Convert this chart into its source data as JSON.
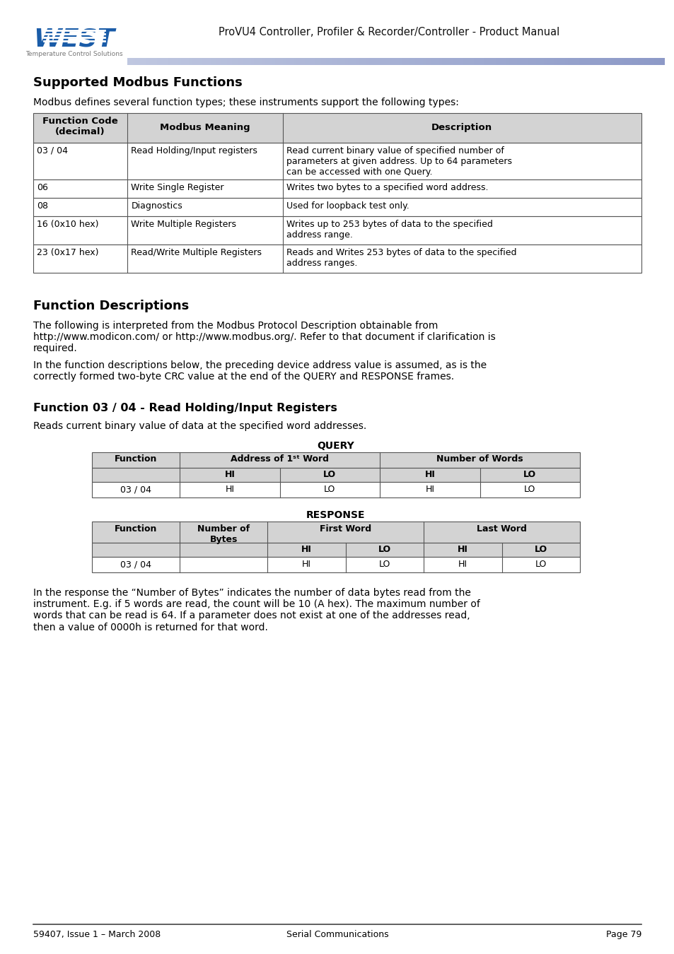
{
  "page_title": "ProVU4 Controller, Profiler & Recorder/Controller - Product Manual",
  "section1_title": "Supported Modbus Functions",
  "section1_intro": "Modbus defines several function types; these instruments support the following types:",
  "table1_headers": [
    "Function Code\n(decimal)",
    "Modbus Meaning",
    "Description"
  ],
  "table1_rows": [
    [
      "03 / 04",
      "Read Holding/Input registers",
      "Read current binary value of specified number of\nparameters at given address. Up to 64 parameters\ncan be accessed with one Query."
    ],
    [
      "06",
      "Write Single Register",
      "Writes two bytes to a specified word address."
    ],
    [
      "08",
      "Diagnostics",
      "Used for loopback test only."
    ],
    [
      "16 (0x10 hex)",
      "Write Multiple Registers",
      "Writes up to 253 bytes of data to the specified\naddress range."
    ],
    [
      "23 (0x17 hex)",
      "Read/Write Multiple Registers",
      "Reads and Writes 253 bytes of data to the specified\naddress ranges."
    ]
  ],
  "section2_title": "Function Descriptions",
  "section2_para1": "The following is interpreted from the Modbus Protocol Description obtainable from\nhttp://www.modicon.com/ or http://www.modbus.org/. Refer to that document if clarification is\nrequired.",
  "section2_para2": "In the function descriptions below, the preceding device address value is assumed, as is the\ncorrectly formed two-byte CRC value at the end of the QUERY and RESPONSE frames.",
  "section3_title": "Function 03 / 04 - Read Holding/Input Registers",
  "section3_intro": "Reads current binary value of data at the specified word addresses.",
  "query_title": "QUERY",
  "response_title": "RESPONSE",
  "section3_para": "In the response the “Number of Bytes” indicates the number of data bytes read from the\ninstrument. E.g. if 5 words are read, the count will be 10 (A hex). The maximum number of\nwords that can be read is 64. If a parameter does not exist at one of the addresses read,\nthen a value of 0000h is returned for that word.",
  "footer_left": "59407, Issue 1 – March 2008",
  "footer_center": "Serial Communications",
  "footer_right": "Page 79",
  "table_border_color": "#555555",
  "table_header_bg": "#d3d3d3",
  "bg_color": "#ffffff",
  "logo_color": "#1a5ca8",
  "logo_bar_color": "#8090b8"
}
